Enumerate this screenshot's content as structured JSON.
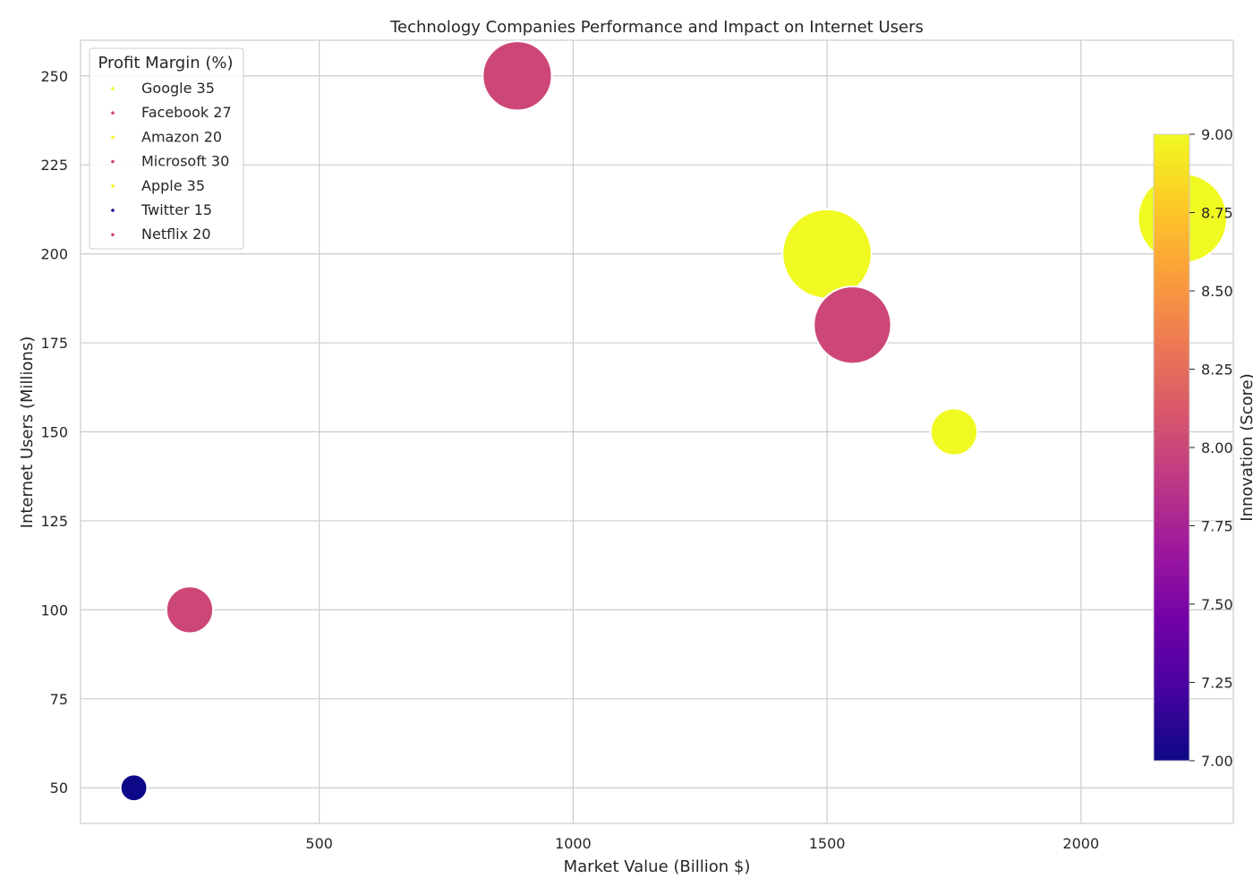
{
  "chart_data": {
    "type": "scatter",
    "title": "Technology Companies Performance and Impact on Internet Users",
    "xlabel": "Market Value (Billion $)",
    "ylabel": "Internet Users (Millions)",
    "xlim": [
      30,
      2300
    ],
    "ylim": [
      40,
      260
    ],
    "xticks": [
      500,
      1000,
      1500,
      2000
    ],
    "yticks": [
      50,
      75,
      100,
      125,
      150,
      175,
      200,
      225,
      250
    ],
    "grid": true,
    "legend": {
      "title": "Profit Margin (%)",
      "placement": "top-left",
      "entries": [
        {
          "label": "Google 35",
          "color": "#f0f921"
        },
        {
          "label": "Facebook 27",
          "color": "#cc4778"
        },
        {
          "label": "Amazon 20",
          "color": "#f0f921"
        },
        {
          "label": "Microsoft 30",
          "color": "#cc4778"
        },
        {
          "label": "Apple 35",
          "color": "#f0f921"
        },
        {
          "label": "Twitter 15",
          "color": "#0d0887"
        },
        {
          "label": "Netflix 20",
          "color": "#cc4778"
        }
      ]
    },
    "colorbar": {
      "label": "Innovation (Score)",
      "range": [
        7.0,
        9.0
      ],
      "ticks": [
        "7.00",
        "7.25",
        "7.50",
        "7.75",
        "8.00",
        "8.25",
        "8.50",
        "8.75",
        "9.00"
      ],
      "colormap": [
        "#0d0887",
        "#46039f",
        "#7201a8",
        "#9c179e",
        "#bd3786",
        "#d8576b",
        "#ed7953",
        "#fb9f3a",
        "#fdca26",
        "#f0f921"
      ]
    },
    "points": [
      {
        "x": 1500,
        "y": 200,
        "size": 2000,
        "color": "#f0f921"
      },
      {
        "x": 890,
        "y": 250,
        "size": 1200,
        "color": "#cc4778"
      },
      {
        "x": 2200,
        "y": 210,
        "size": 2000,
        "color": "#f0f921"
      },
      {
        "x": 1550,
        "y": 180,
        "size": 1500,
        "color": "#cc4778"
      },
      {
        "x": 1750,
        "y": 150,
        "size": 550,
        "color": "#f0f921"
      },
      {
        "x": 135,
        "y": 50,
        "size": 180,
        "color": "#0d0887"
      },
      {
        "x": 245,
        "y": 100,
        "size": 550,
        "color": "#cc4778"
      }
    ]
  }
}
